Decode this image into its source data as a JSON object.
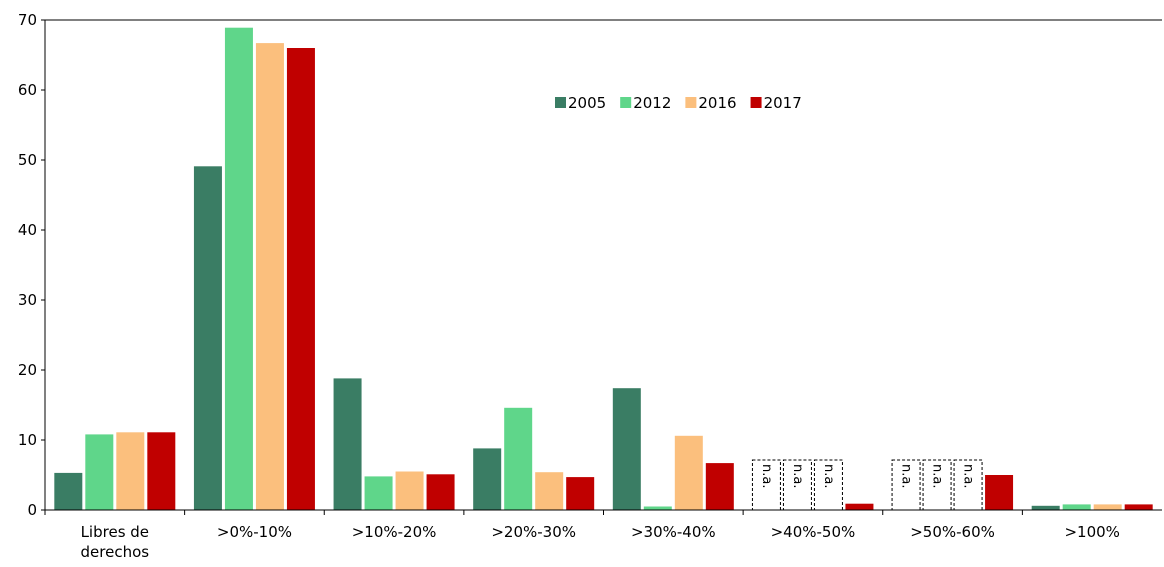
{
  "chart_data": {
    "type": "bar",
    "categories": [
      "Libres de derechos",
      ">0%-10%",
      ">10%-20%",
      ">20%-30%",
      ">30%-40%",
      ">40%-50%",
      ">50%-60%",
      ">100%"
    ],
    "series": [
      {
        "name": "2005",
        "color": "#3a7d64",
        "values": [
          5.3,
          49.1,
          18.8,
          8.8,
          17.4,
          null,
          null,
          0.6
        ],
        "value_labels": [
          null,
          null,
          null,
          null,
          null,
          "n.a.",
          "n.a.",
          null
        ]
      },
      {
        "name": "2012",
        "color": "#5fd68a",
        "values": [
          10.8,
          68.9,
          4.8,
          14.6,
          0.5,
          null,
          null,
          0.8
        ],
        "value_labels": [
          null,
          null,
          null,
          null,
          null,
          "n.a.",
          "n.a.",
          null
        ]
      },
      {
        "name": "2016",
        "color": "#fbbf7d",
        "values": [
          11.1,
          66.7,
          5.5,
          5.4,
          10.6,
          null,
          null,
          0.8
        ],
        "value_labels": [
          null,
          null,
          null,
          null,
          null,
          "n.a.",
          "n.a.",
          null
        ]
      },
      {
        "name": "2017",
        "color": "#c00000",
        "values": [
          11.1,
          66.0,
          5.1,
          4.7,
          6.7,
          0.9,
          5.0,
          0.8
        ]
      }
    ],
    "ylim": [
      0,
      70
    ],
    "yticks": [
      0,
      10,
      20,
      30,
      40,
      50,
      60,
      70
    ],
    "grid": false
  }
}
